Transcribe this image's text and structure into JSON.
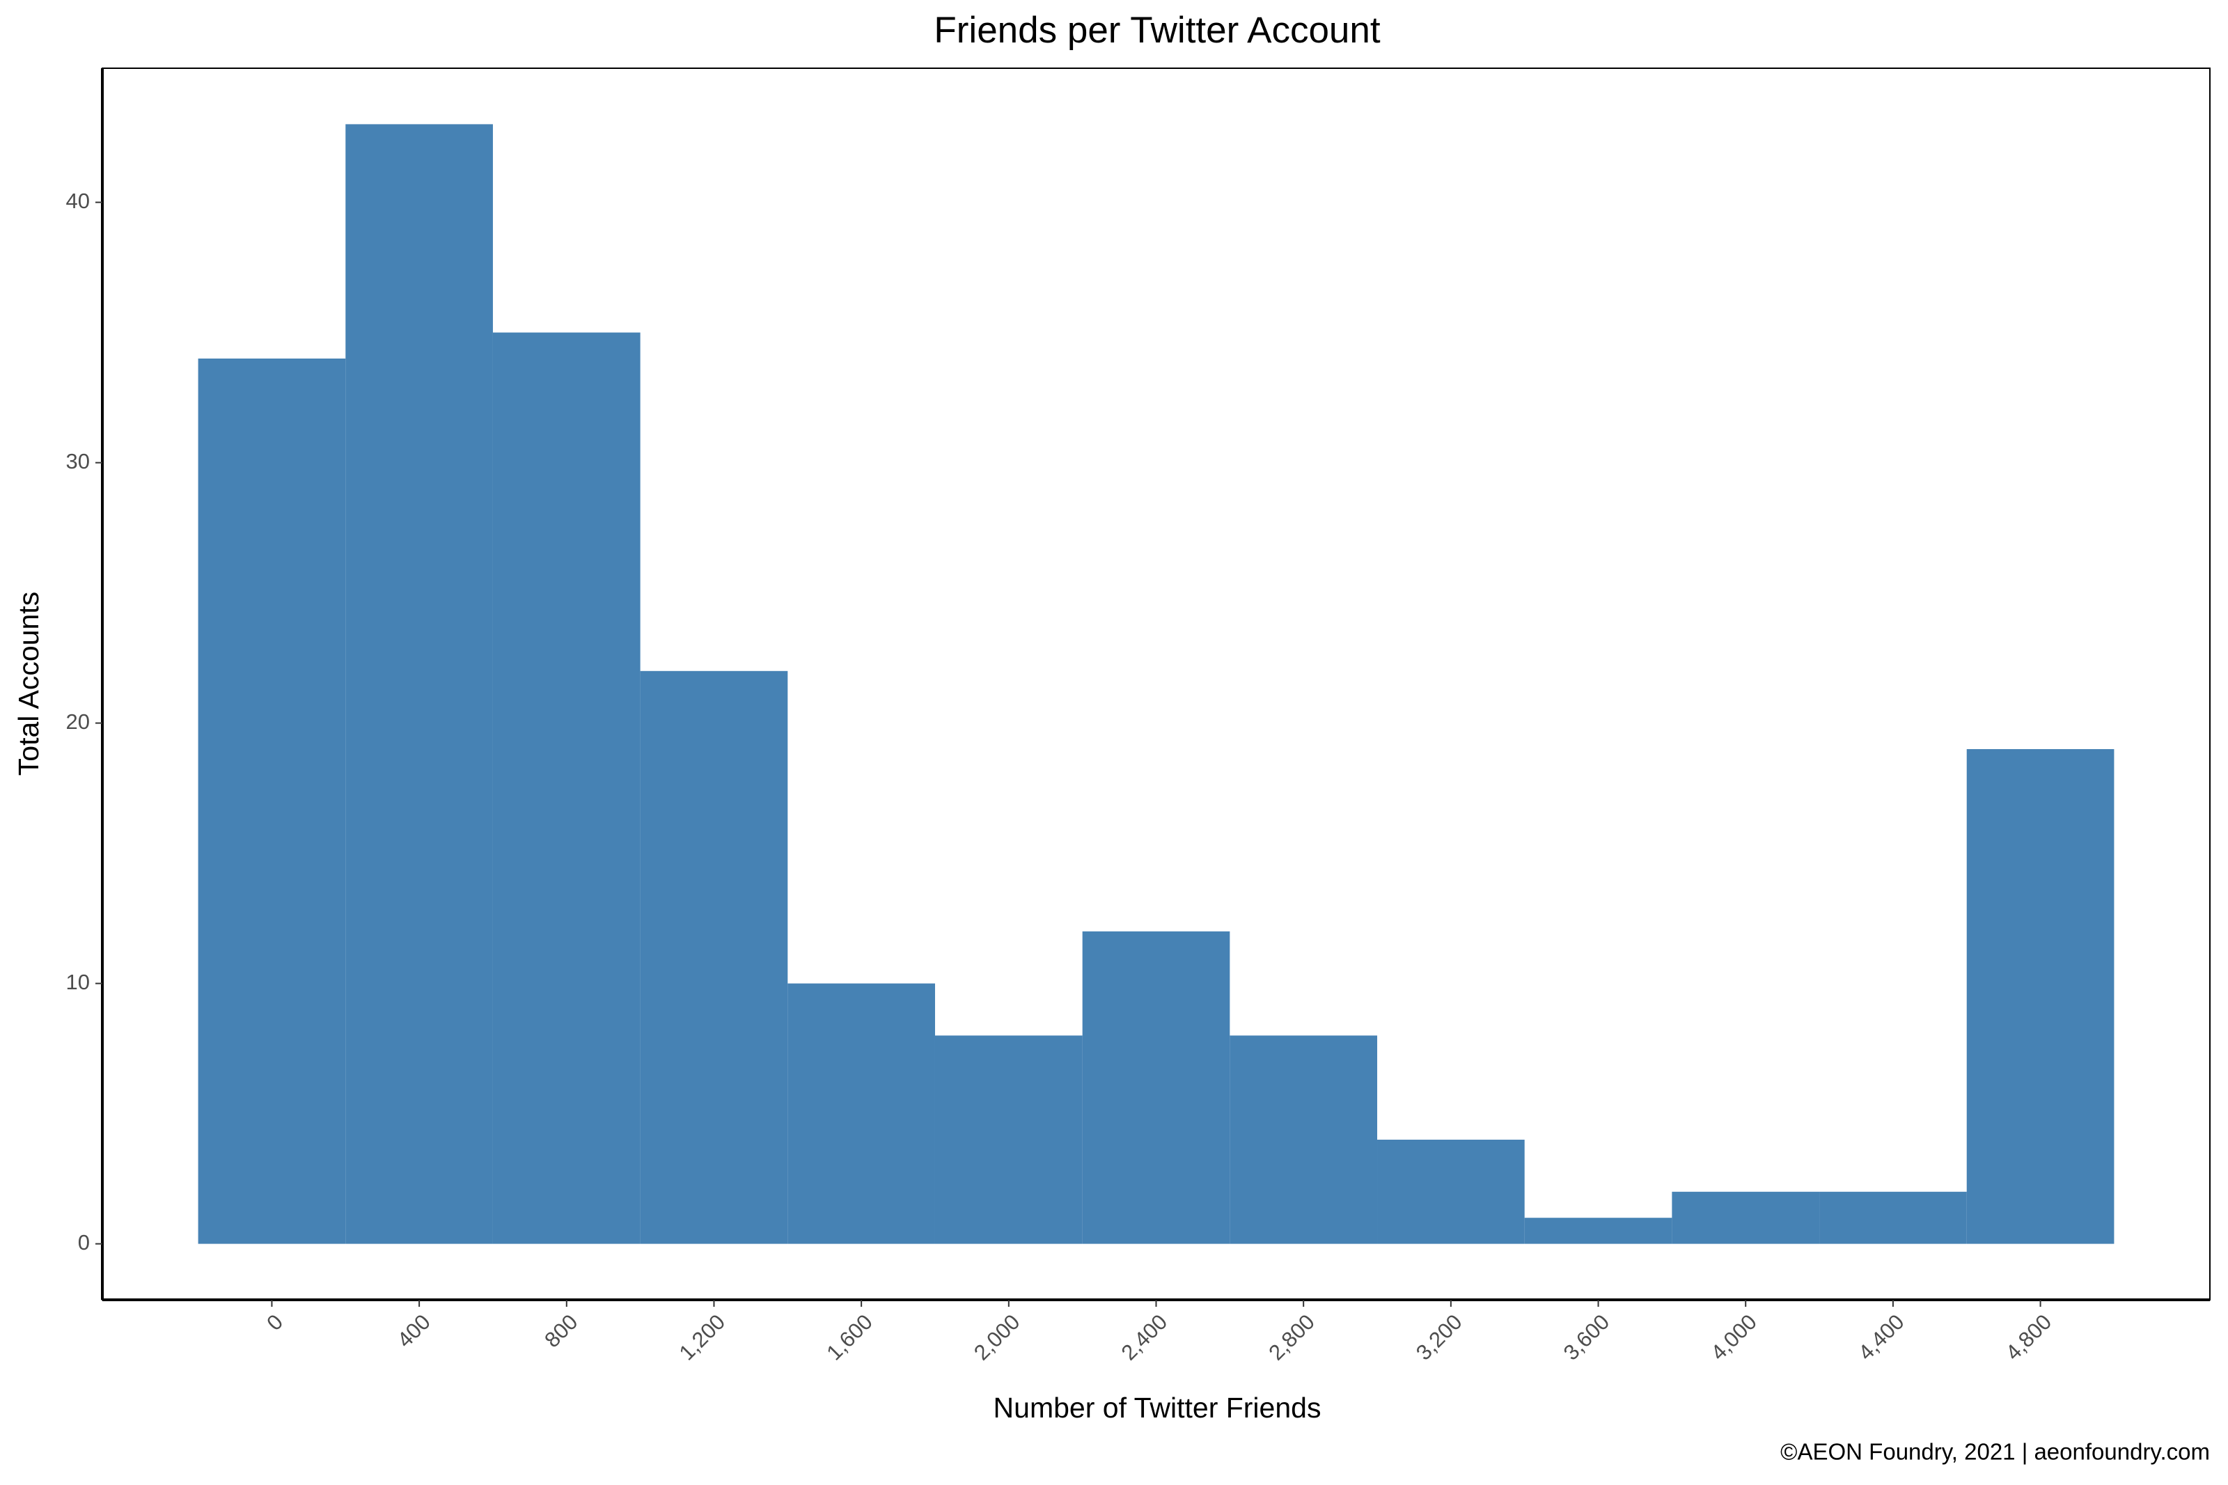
{
  "chart_data": {
    "type": "histogram",
    "title": "Friends per Twitter Account",
    "x_label": "Number of Twitter Friends",
    "y_label": "Total Accounts",
    "caption": "©AEON Foundry, 2021 | aeonfoundry.com",
    "bins": [
      -200,
      200,
      600,
      1000,
      1400,
      1800,
      2200,
      2600,
      3000,
      3400,
      3800,
      4200,
      4600,
      5000
    ],
    "values": [
      34,
      43,
      35,
      22,
      10,
      8,
      12,
      8,
      4,
      1,
      2,
      2,
      19
    ],
    "color": "#4682b4",
    "xlim": [
      -460,
      5260
    ],
    "xticks": [
      0,
      {
        "value": 400,
        "label": "400"
      },
      {
        "value": 800,
        "label": "800"
      },
      {
        "value": 1200,
        "label": "1,200"
      },
      {
        "value": 1600,
        "label": "1,600"
      },
      {
        "value": 2000,
        "label": "2,000"
      },
      {
        "value": 2400,
        "label": "2,400"
      },
      {
        "value": 2800,
        "label": "2,800"
      },
      {
        "value": 3200,
        "label": "3,200"
      },
      {
        "value": 3600,
        "label": "3,600"
      },
      {
        "value": 4000,
        "label": "4,000"
      },
      {
        "value": 4400,
        "label": "4,400"
      },
      {
        "value": 4800,
        "label": "4,800"
      }
    ],
    "ylim": [
      -2.15,
      45.15
    ],
    "yticks": [
      0,
      10,
      20,
      30,
      40
    ],
    "grid": false
  }
}
